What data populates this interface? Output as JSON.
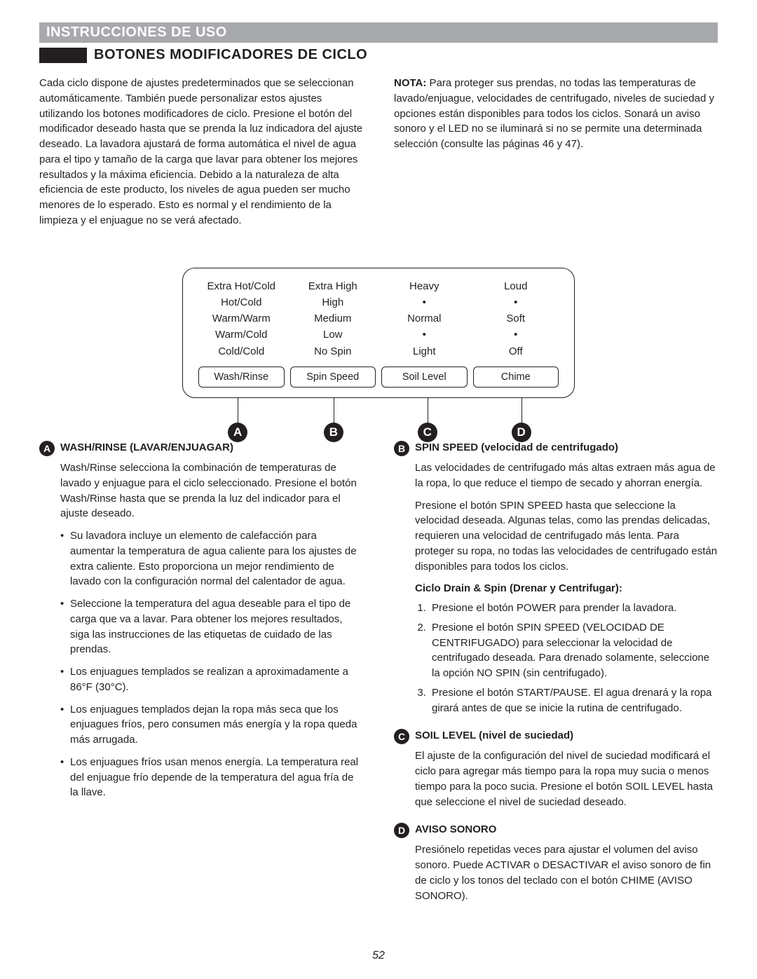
{
  "header": {
    "title": "INSTRUCCIONES DE USO"
  },
  "section": {
    "title": "BOTONES MODIFICADORES DE CICLO"
  },
  "intro": {
    "left": "Cada ciclo dispone de ajustes predeterminados que se seleccionan automáticamente. También puede personalizar estos ajustes utilizando los botones modificadores de ciclo. Presione el botón del modificador deseado hasta que se prenda la luz indicadora del ajuste deseado. La lavadora ajustará de forma automática el nivel de agua para el tipo y tamaño de la carga que lavar para obtener los mejores resultados y la máxima eficiencia. Debido a la naturaleza de alta eficiencia de este producto, los niveles de agua pueden ser mucho menores de lo esperado. Esto es normal y el rendimiento de la limpieza y el enjuague no se verá afectado.",
    "right_label": "NOTA:",
    "right": " Para proteger sus prendas, no todas las temperaturas de lavado/enjuague, velocidades de centrifugado, niveles de suciedad y opciones están disponibles para todos los ciclos. Sonará un aviso sonoro y el LED no se iluminará si no se permite una determinada selección (consulte las páginas 46 y 47)."
  },
  "panel": {
    "cols": [
      {
        "letter": "A",
        "button": "Wash/Rinse",
        "options": [
          "Extra Hot/Cold",
          "Hot/Cold",
          "Warm/Warm",
          "Warm/Cold",
          "Cold/Cold"
        ]
      },
      {
        "letter": "B",
        "button": "Spin Speed",
        "options": [
          "Extra High",
          "High",
          "Medium",
          "Low",
          "No Spin"
        ]
      },
      {
        "letter": "C",
        "button": "Soil Level",
        "options": [
          "Heavy",
          "•",
          "Normal",
          "•",
          "Light"
        ]
      },
      {
        "letter": "D",
        "button": "Chime",
        "options": [
          "Loud",
          "•",
          "Soft",
          "•",
          "Off"
        ]
      }
    ]
  },
  "details": {
    "A": {
      "title": "WASH/RINSE (LAVAR/ENJUAGAR)",
      "lead": "Wash/Rinse selecciona la combinación de temperaturas de lavado y enjuague para el ciclo seleccionado. Presione el botón Wash/Rinse hasta que se prenda la luz del indicador para el ajuste deseado.",
      "bullets": [
        "Su lavadora incluye un elemento de calefacción para aumentar la temperatura de agua caliente para los ajustes de extra caliente. Esto proporciona un mejor rendimiento de lavado con la configuración normal del calentador de agua.",
        "Seleccione la temperatura del agua deseable para el tipo de carga que va a lavar. Para obtener los mejores resultados, siga las instrucciones de las etiquetas de cuidado de las prendas.",
        "Los enjuagues templados se realizan a aproximadamente a 86°F (30°C).",
        "Los enjuagues templados dejan la ropa más seca que los enjuagues fríos, pero consumen más energía y la ropa queda más arrugada.",
        "Los enjuagues fríos usan menos energía. La temperatura real del enjuague frío depende de la temperatura del agua fría de la llave."
      ]
    },
    "B": {
      "title": "SPIN SPEED (velocidad de centrifugado)",
      "p1": "Las velocidades de centrifugado más altas extraen más agua de la ropa, lo que reduce el tiempo de secado y ahorran energía.",
      "p2": "Presione el botón SPIN SPEED hasta que seleccione la velocidad deseada. Algunas telas, como las prendas delicadas, requieren una velocidad de centrifugado más lenta. Para proteger su ropa, no todas las velocidades de centrifugado están disponibles para todos los ciclos.",
      "sub": "Ciclo Drain & Spin (Drenar y Centrifugar):",
      "steps": [
        "Presione el botón POWER para prender la lavadora.",
        "Presione el botón SPIN SPEED (VELOCIDAD DE CENTRIFUGADO) para seleccionar la velocidad de centrifugado deseada. Para drenado solamente, seleccione la opción NO SPIN (sin centrifugado).",
        "Presione el botón START/PAUSE. El agua drenará y la ropa girará antes de que se inicie la rutina de centrifugado."
      ]
    },
    "C": {
      "title": "SOIL LEVEL (nivel de suciedad)",
      "body": "El ajuste de la configuración del nivel de suciedad modificará el ciclo para agregar más tiempo para la ropa muy sucia o menos tiempo para la poco sucia. Presione el botón SOIL LEVEL hasta que seleccione el nivel de suciedad deseado."
    },
    "D": {
      "title": "AVISO SONORO",
      "body": "Presiónelo repetidas veces para ajustar el volumen del aviso sonoro. Puede ACTIVAR o DESACTIVAR el aviso sonoro de fin de ciclo y los tonos del teclado con el botón CHIME (AVISO SONORO)."
    }
  },
  "page_number": "52"
}
